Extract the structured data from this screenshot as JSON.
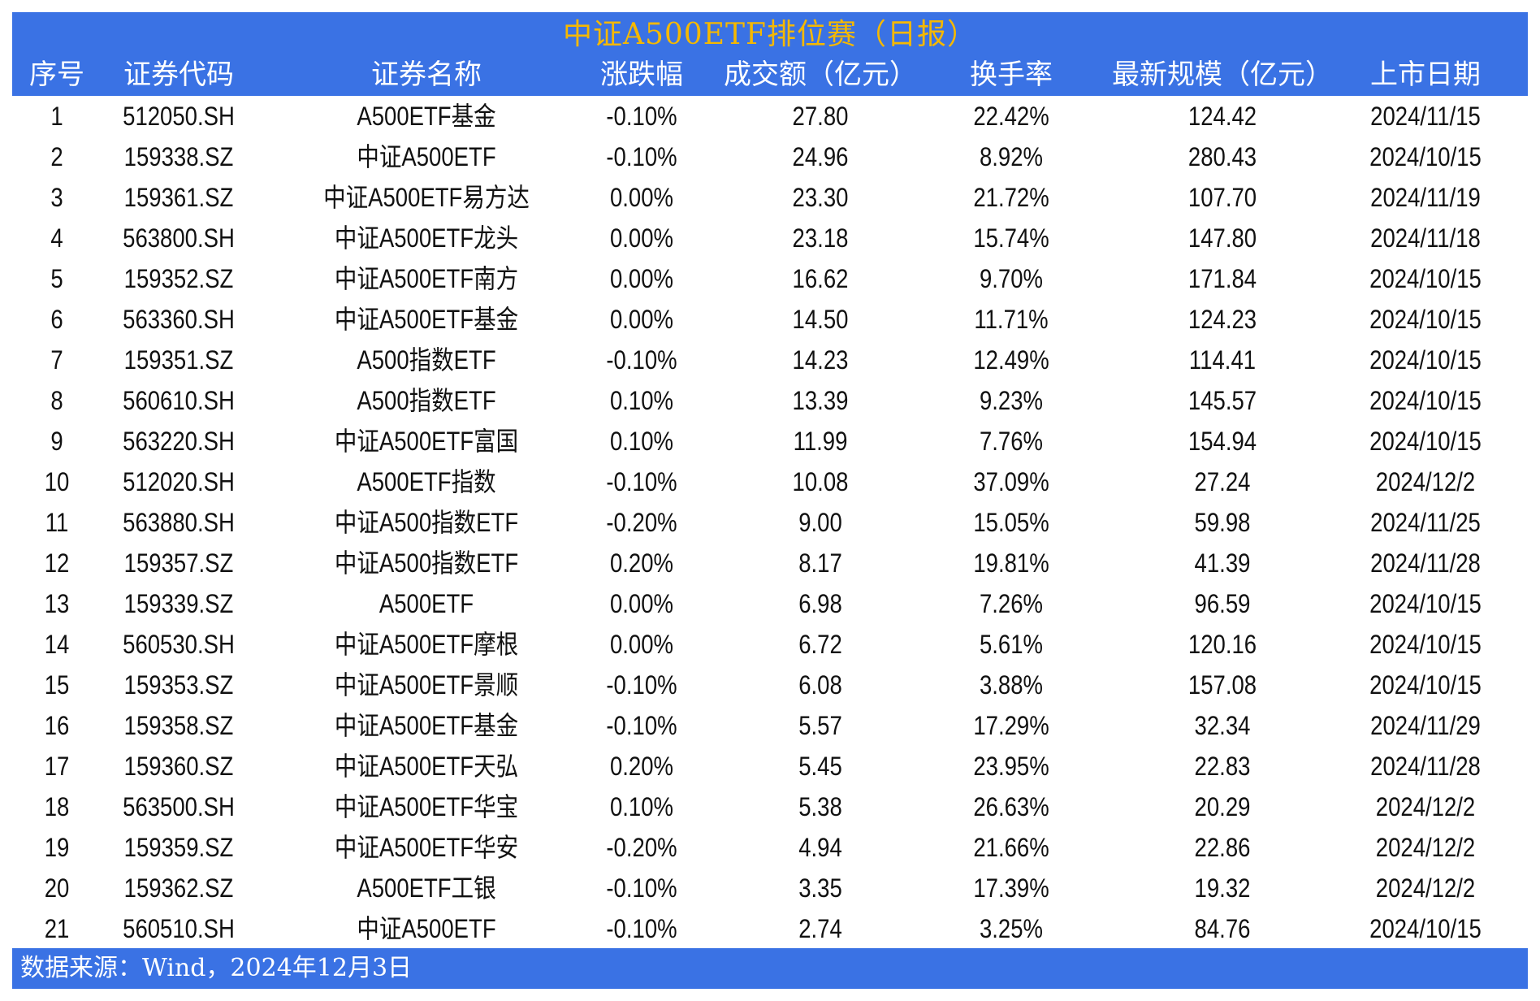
{
  "title": "中证A500ETF排位赛（日报）",
  "colors": {
    "band": "#3a72e4",
    "title": "#f5b800",
    "header_text": "#ffffff",
    "body_text": "#111111"
  },
  "columns": [
    "序号",
    "证券代码",
    "证券名称",
    "涨跌幅",
    "成交额（亿元）",
    "换手率",
    "最新规模（亿元）",
    "上市日期"
  ],
  "rows": [
    [
      "1",
      "512050.SH",
      "A500ETF基金",
      "-0.10%",
      "27.80",
      "22.42%",
      "124.42",
      "2024/11/15"
    ],
    [
      "2",
      "159338.SZ",
      "中证A500ETF",
      "-0.10%",
      "24.96",
      "8.92%",
      "280.43",
      "2024/10/15"
    ],
    [
      "3",
      "159361.SZ",
      "中证A500ETF易方达",
      "0.00%",
      "23.30",
      "21.72%",
      "107.70",
      "2024/11/19"
    ],
    [
      "4",
      "563800.SH",
      "中证A500ETF龙头",
      "0.00%",
      "23.18",
      "15.74%",
      "147.80",
      "2024/11/18"
    ],
    [
      "5",
      "159352.SZ",
      "中证A500ETF南方",
      "0.00%",
      "16.62",
      "9.70%",
      "171.84",
      "2024/10/15"
    ],
    [
      "6",
      "563360.SH",
      "中证A500ETF基金",
      "0.00%",
      "14.50",
      "11.71%",
      "124.23",
      "2024/10/15"
    ],
    [
      "7",
      "159351.SZ",
      "A500指数ETF",
      "-0.10%",
      "14.23",
      "12.49%",
      "114.41",
      "2024/10/15"
    ],
    [
      "8",
      "560610.SH",
      "A500指数ETF",
      "0.10%",
      "13.39",
      "9.23%",
      "145.57",
      "2024/10/15"
    ],
    [
      "9",
      "563220.SH",
      "中证A500ETF富国",
      "0.10%",
      "11.99",
      "7.76%",
      "154.94",
      "2024/10/15"
    ],
    [
      "10",
      "512020.SH",
      "A500ETF指数",
      "-0.10%",
      "10.08",
      "37.09%",
      "27.24",
      "2024/12/2"
    ],
    [
      "11",
      "563880.SH",
      "中证A500指数ETF",
      "-0.20%",
      "9.00",
      "15.05%",
      "59.98",
      "2024/11/25"
    ],
    [
      "12",
      "159357.SZ",
      "中证A500指数ETF",
      "0.20%",
      "8.17",
      "19.81%",
      "41.39",
      "2024/11/28"
    ],
    [
      "13",
      "159339.SZ",
      "A500ETF",
      "0.00%",
      "6.98",
      "7.26%",
      "96.59",
      "2024/10/15"
    ],
    [
      "14",
      "560530.SH",
      "中证A500ETF摩根",
      "0.00%",
      "6.72",
      "5.61%",
      "120.16",
      "2024/10/15"
    ],
    [
      "15",
      "159353.SZ",
      "中证A500ETF景顺",
      "-0.10%",
      "6.08",
      "3.88%",
      "157.08",
      "2024/10/15"
    ],
    [
      "16",
      "159358.SZ",
      "中证A500ETF基金",
      "-0.10%",
      "5.57",
      "17.29%",
      "32.34",
      "2024/11/29"
    ],
    [
      "17",
      "159360.SZ",
      "中证A500ETF天弘",
      "0.20%",
      "5.45",
      "23.95%",
      "22.83",
      "2024/11/28"
    ],
    [
      "18",
      "563500.SH",
      "中证A500ETF华宝",
      "0.10%",
      "5.38",
      "26.63%",
      "20.29",
      "2024/12/2"
    ],
    [
      "19",
      "159359.SZ",
      "中证A500ETF华安",
      "-0.20%",
      "4.94",
      "21.66%",
      "22.86",
      "2024/12/2"
    ],
    [
      "20",
      "159362.SZ",
      "A500ETF工银",
      "-0.10%",
      "3.35",
      "17.39%",
      "19.32",
      "2024/12/2"
    ],
    [
      "21",
      "560510.SH",
      "中证A500ETF",
      "-0.10%",
      "2.74",
      "3.25%",
      "84.76",
      "2024/10/15"
    ]
  ],
  "footer": "数据来源：Wind，2024年12月3日"
}
